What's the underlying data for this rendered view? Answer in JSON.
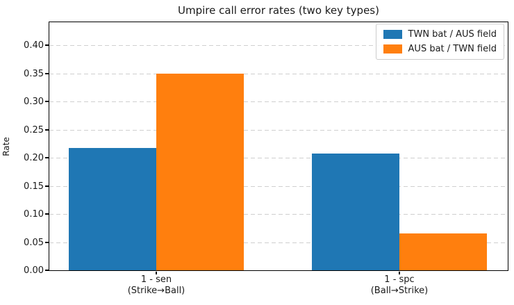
{
  "title": "Umpire call error rates (two key types)",
  "chart_data": {
    "type": "bar",
    "title": "Umpire call error rates (two key types)",
    "ylabel": "Rate",
    "xlabel": "",
    "ylim": [
      0,
      0.441
    ],
    "yticks": [
      0.0,
      0.05,
      0.1,
      0.15,
      0.2,
      0.25,
      0.3,
      0.35,
      0.4
    ],
    "grid": "horizontal dashed",
    "legend_position": "upper right",
    "categories": [
      {
        "label": "1 - sen",
        "sublabel": "(Strike→Ball)"
      },
      {
        "label": "1 - spc",
        "sublabel": "(Ball→Strike)"
      }
    ],
    "series": [
      {
        "name": "TWN bat / AUS field",
        "color": "#1f77b4",
        "values": [
          0.218,
          0.208
        ]
      },
      {
        "name": "AUS bat / TWN field",
        "color": "#ff7f0e",
        "values": [
          0.35,
          0.065
        ]
      }
    ]
  }
}
